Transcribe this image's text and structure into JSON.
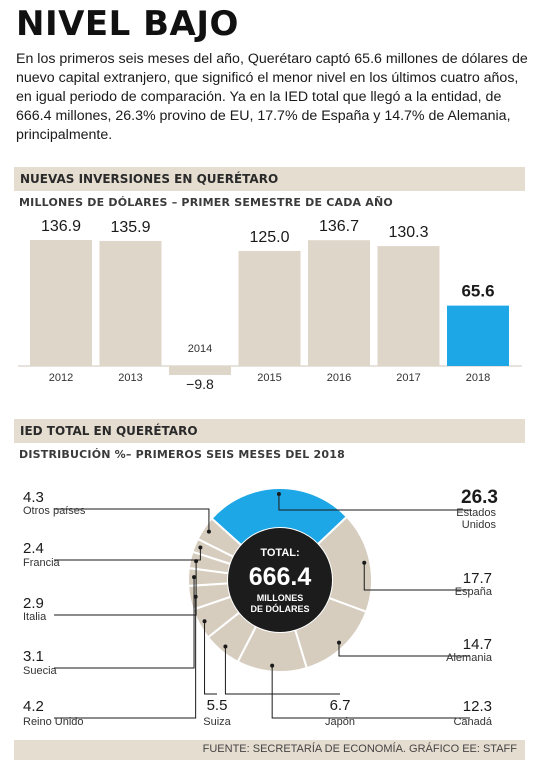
{
  "title": "NIVEL BAJO",
  "intro": "En los primeros seis meses del año, Querétaro captó 65.6 millones de dólares de nuevo capital extranjero, que significó el menor nivel en los últimos cuatro años, en igual periodo de comparación. Ya en la IED total que llegó a la entidad, de 666.4 millones, 26.3% provino de EU, 17.7% de España y 14.7% de Alemania, principalmente.",
  "section1": {
    "band_label": "NUEVAS INVERSIONES EN QUERÉTARO",
    "subhead": "MILLONES DE DÓLARES – PRIMER SEMESTRE DE CADA AÑO"
  },
  "section2": {
    "band_label": "IED TOTAL EN QUERÉTARO",
    "subhead": "DISTRIBUCIÓN %– PRIMEROS SEIS MESES DEL 2018",
    "center_top": "TOTAL:",
    "center_value": "666.4",
    "center_unit_1": "MILLONES",
    "center_unit_2": "DE DÓLARES"
  },
  "footer": "FUENTE: SECRETARÍA DE ECONOMÍA. GRÁFICO EE: STAFF",
  "colors": {
    "bar": "#dfd6ca",
    "highlight": "#1ea7e6",
    "donut": "#d7cdbf",
    "band": "#e6ddd1",
    "center": "#1c1c1c"
  },
  "chart_data": [
    {
      "type": "bar",
      "categories": [
        "2012",
        "2013",
        "2014",
        "2015",
        "2016",
        "2017",
        "2018"
      ],
      "values": [
        136.9,
        135.9,
        -9.8,
        125.0,
        136.7,
        130.3,
        65.6
      ],
      "value_labels": [
        "136.9",
        "135.9",
        "−9.8",
        "125.0",
        "136.7",
        "130.3",
        "65.6"
      ],
      "highlight": "2018",
      "ylim": [
        -9.8,
        136.9
      ]
    },
    {
      "type": "pie",
      "labels": [
        "Estados Unidos",
        "España",
        "Alemania",
        "Canadá",
        "Japón",
        "Suiza",
        "Reino Unido",
        "Suecia",
        "Italia",
        "Francia",
        "Otros países"
      ],
      "values": [
        26.3,
        17.7,
        14.7,
        12.3,
        6.7,
        5.5,
        4.2,
        3.1,
        2.9,
        2.4,
        4.3
      ],
      "value_labels": [
        "26.3",
        "17.7",
        "14.7",
        "12.3",
        "6.7",
        "5.5",
        "4.2",
        "3.1",
        "2.9",
        "2.4",
        "4.3"
      ],
      "highlight": "Estados Unidos"
    }
  ]
}
